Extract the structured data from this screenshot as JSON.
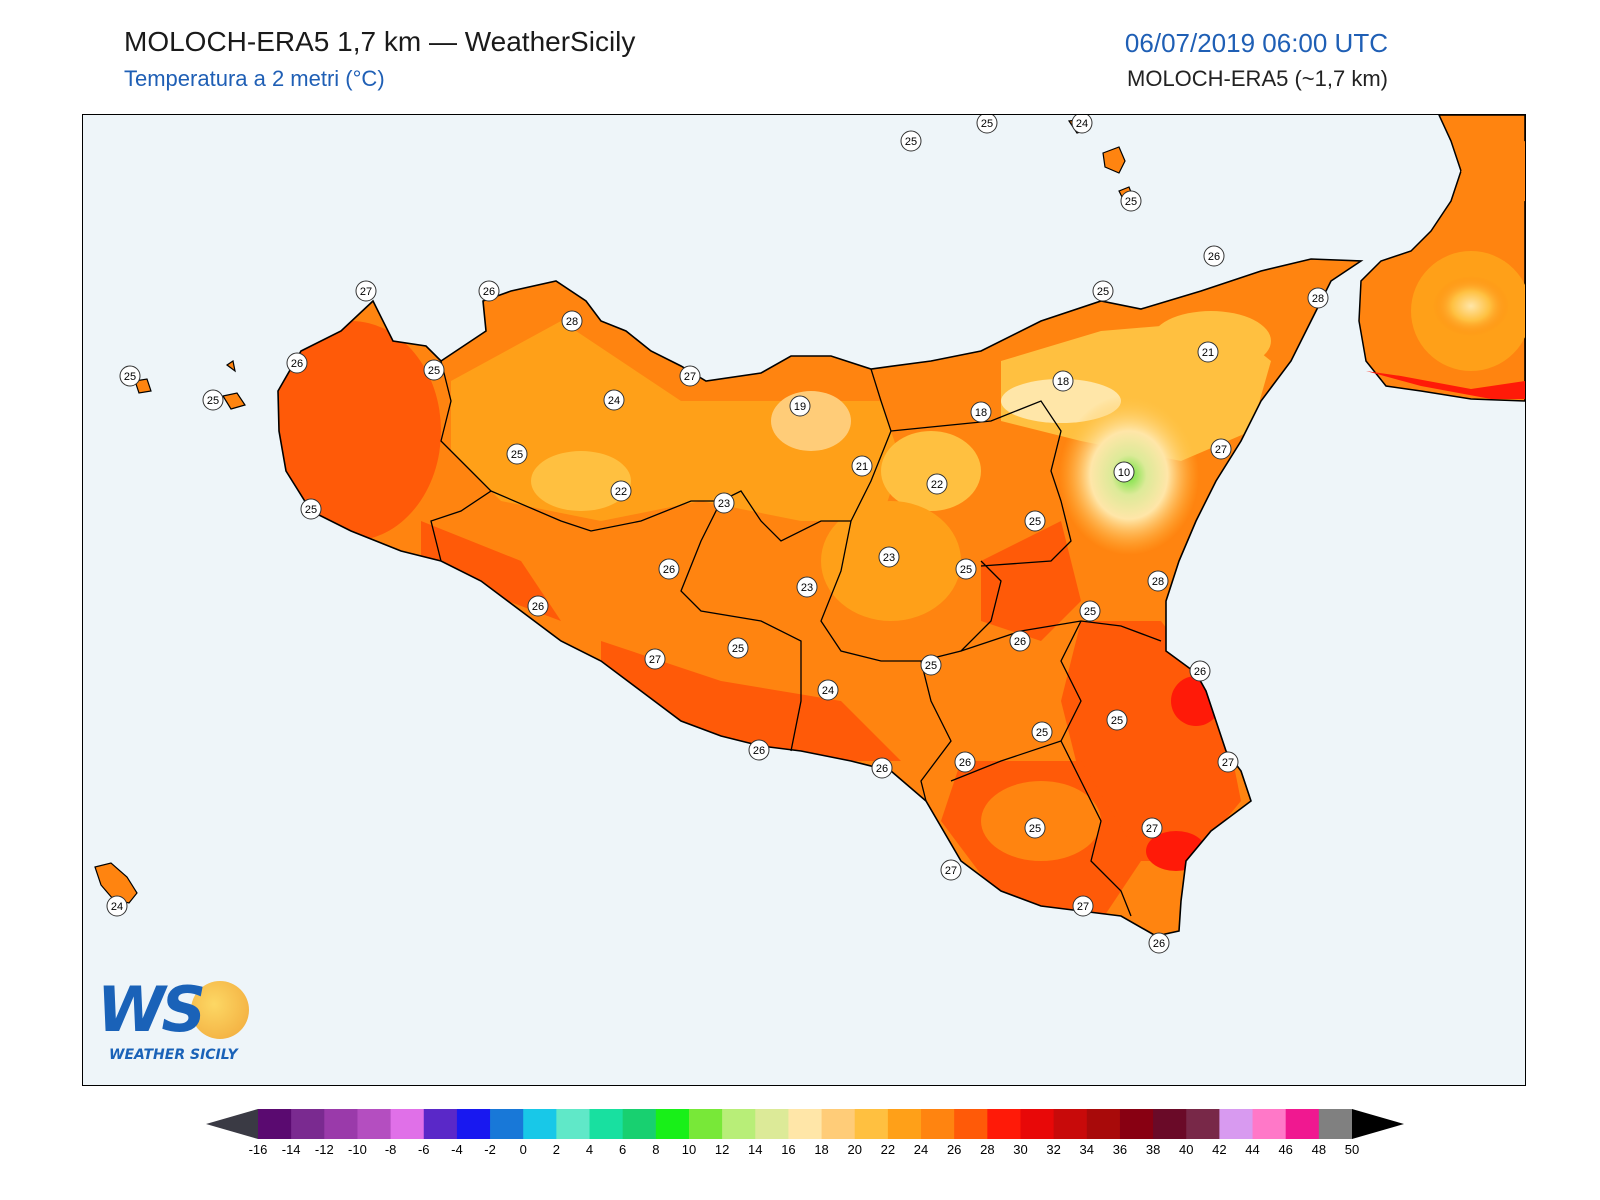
{
  "header": {
    "title": "MOLOCH-ERA5 1,7 km — WeatherSicily",
    "subtitle": "Temperatura a 2 metri (°C)",
    "datetime": "06/07/2019 06:00 UTC",
    "model_info": "MOLOCH-ERA5 (~1,7 km)"
  },
  "logo": {
    "letters": "WS",
    "brand": "WEATHER SICILY"
  },
  "colors": {
    "sea": "#eef5f9",
    "land_base": "#ff8a1c",
    "coast": "#000000",
    "title_blue": "#1f5fb5"
  },
  "station_values": [
    {
      "v": "25"
    },
    {
      "v": "25"
    },
    {
      "v": "24"
    },
    {
      "v": "25"
    },
    {
      "v": "26"
    },
    {
      "v": "27"
    },
    {
      "v": "26"
    },
    {
      "v": "28"
    },
    {
      "v": "25"
    },
    {
      "v": "28"
    },
    {
      "v": "25"
    },
    {
      "v": "25"
    },
    {
      "v": "26"
    },
    {
      "v": "21"
    },
    {
      "v": "27"
    },
    {
      "v": "25"
    },
    {
      "v": "18"
    },
    {
      "v": "24"
    },
    {
      "v": "19"
    },
    {
      "v": "18"
    },
    {
      "v": "27"
    },
    {
      "v": "10"
    },
    {
      "v": "25"
    },
    {
      "v": "21"
    },
    {
      "v": "22"
    },
    {
      "v": "22"
    },
    {
      "v": "23"
    },
    {
      "v": "25"
    },
    {
      "v": "25"
    },
    {
      "v": "23"
    },
    {
      "v": "26"
    },
    {
      "v": "25"
    },
    {
      "v": "28"
    },
    {
      "v": "26"
    },
    {
      "v": "23"
    },
    {
      "v": "25"
    },
    {
      "v": "26"
    },
    {
      "v": "26"
    },
    {
      "v": "25"
    },
    {
      "v": "27"
    },
    {
      "v": "25"
    },
    {
      "v": "24"
    },
    {
      "v": "25"
    },
    {
      "v": "25"
    },
    {
      "v": "26"
    },
    {
      "v": "26"
    },
    {
      "v": "27"
    },
    {
      "v": "26"
    },
    {
      "v": "25"
    },
    {
      "v": "27"
    },
    {
      "v": "27"
    },
    {
      "v": "27"
    },
    {
      "v": "26"
    },
    {
      "v": "24"
    }
  ],
  "colorbar": {
    "ticks": [
      "-16",
      "-14",
      "-12",
      "-10",
      "-8",
      "-6",
      "-4",
      "-2",
      "0",
      "2",
      "4",
      "6",
      "8",
      "10",
      "12",
      "14",
      "16",
      "18",
      "20",
      "22",
      "24",
      "26",
      "28",
      "30",
      "32",
      "34",
      "36",
      "38",
      "40",
      "42",
      "44",
      "46",
      "48",
      "50"
    ],
    "colors": [
      "#3a0048",
      "#5a0a70",
      "#7a2a90",
      "#9a3aaa",
      "#b44ec0",
      "#e070e8",
      "#5a28c8",
      "#1818f0",
      "#1878d8",
      "#18c8e8",
      "#60e8c8",
      "#18e0a0",
      "#18d070",
      "#18f018",
      "#78e838",
      "#b8ee78",
      "#dcea98",
      "#ffe6a8",
      "#ffcc78",
      "#ffc040",
      "#ffa018",
      "#ff8410",
      "#ff5a08",
      "#ff1a08",
      "#e80808",
      "#c80a0a",
      "#a80a0a",
      "#880012",
      "#6a0a28",
      "#782848",
      "#d89af0",
      "#ff78c8",
      "#f01890",
      "#808080",
      "#3a3a3a"
    ]
  }
}
